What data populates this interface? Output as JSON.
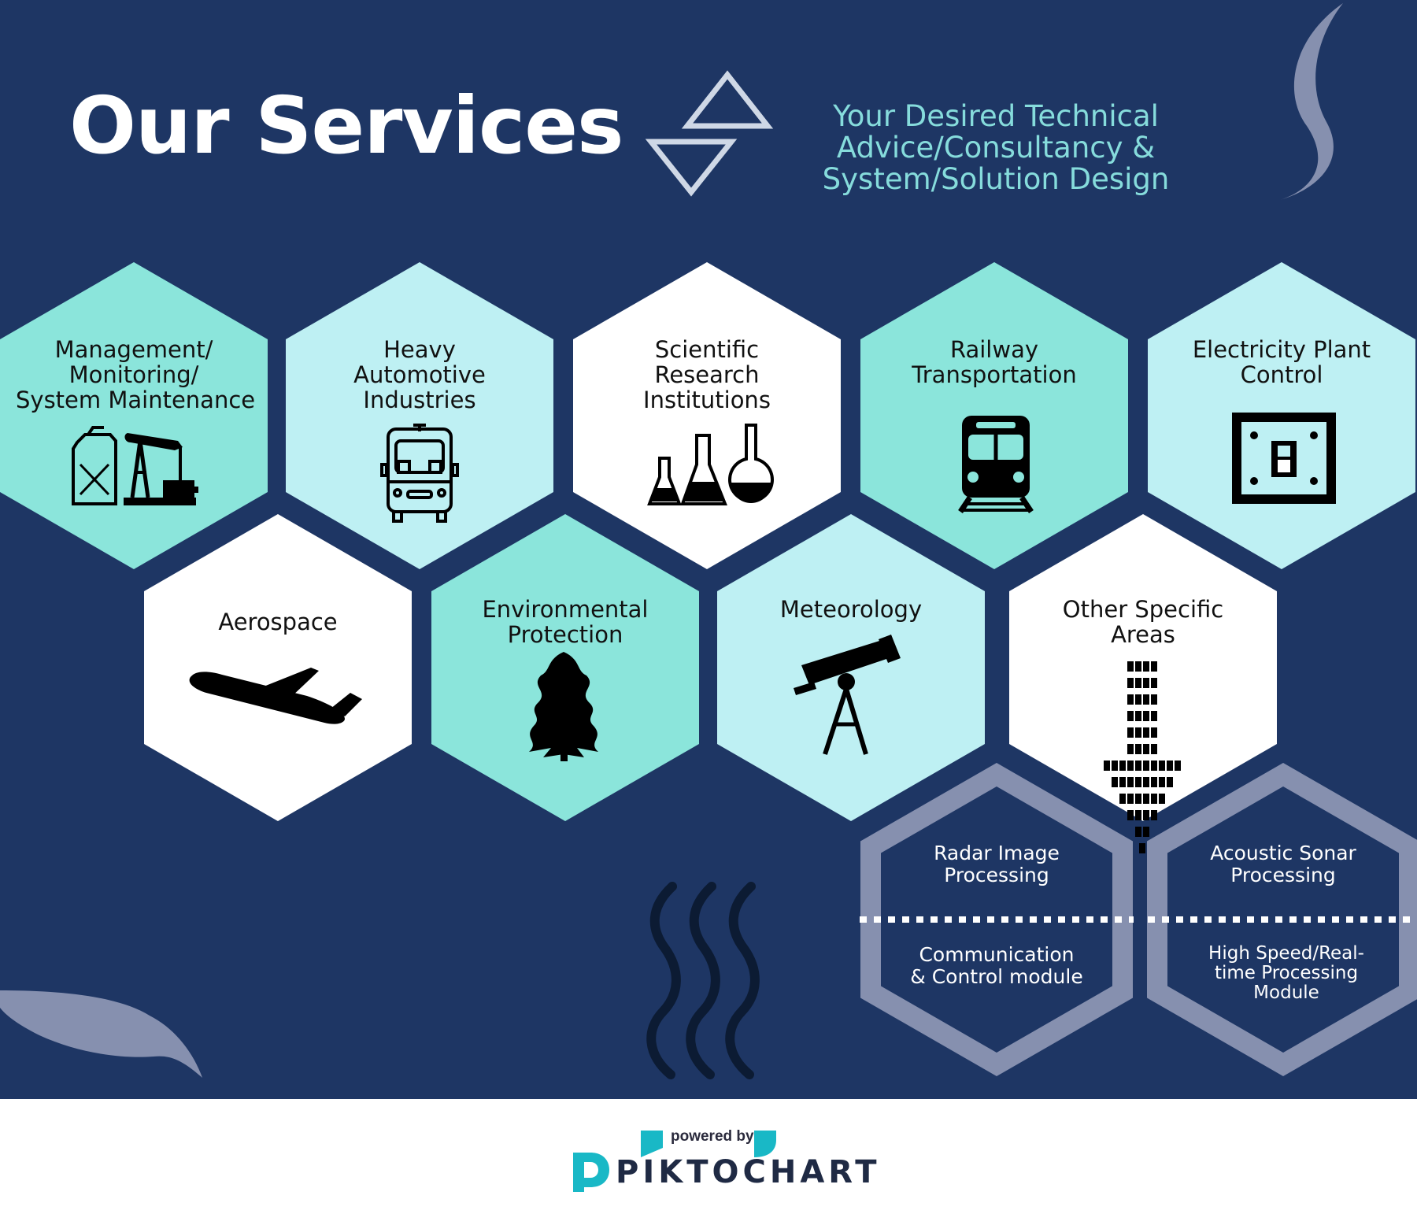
{
  "header": {
    "title": "Our Services",
    "subtitle_lines": [
      "Your Desired Technical",
      "Advice/Consultancy &",
      "System/Solution Design"
    ]
  },
  "services": [
    {
      "lines": [
        "Management/",
        "Monitoring/",
        "System Maintenance"
      ],
      "icon": "fuel-can-oil-pump-icon"
    },
    {
      "lines": [
        "Heavy",
        "Automotive",
        "Industries"
      ],
      "icon": "bus-icon"
    },
    {
      "lines": [
        "Scientific",
        "Research",
        "Institutions"
      ],
      "icon": "lab-flasks-icon"
    },
    {
      "lines": [
        "Railway",
        "Transportation"
      ],
      "icon": "train-icon"
    },
    {
      "lines": [
        "Electricity Plant",
        "Control"
      ],
      "icon": "power-switch-icon"
    },
    {
      "lines": [
        "Aerospace"
      ],
      "icon": "airplane-icon"
    },
    {
      "lines": [
        "Environmental",
        "Protection"
      ],
      "icon": "tree-icon"
    },
    {
      "lines": [
        "Meteorology"
      ],
      "icon": "telescope-icon"
    },
    {
      "lines": [
        "Other Specific",
        "Areas"
      ],
      "icon": "down-arrow-icon"
    }
  ],
  "sub_services": [
    {
      "top": [
        "Radar Image",
        "Processing"
      ],
      "bottom": [
        "Communication",
        "& Control module"
      ]
    },
    {
      "top": [
        "Acoustic Sonar",
        "Processing"
      ],
      "bottom": [
        "High Speed/Real-",
        "time Processing",
        "Module"
      ]
    }
  ],
  "footer": {
    "powered_by": "powered by",
    "brand": "PIKTOCHART"
  },
  "colors": {
    "background": "#1e3664",
    "teal": "#8be5db",
    "light_cyan": "#bef0f3",
    "white": "#ffffff",
    "outline_hex": "#8690af",
    "subtitle": "#86dcdc",
    "logo_teal": "#19b8c6"
  }
}
